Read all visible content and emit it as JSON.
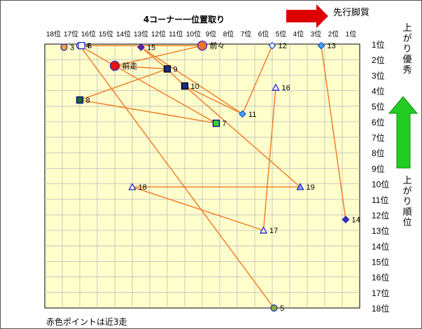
{
  "chart_data": {
    "type": "scatter",
    "title": "4コーナー一位置取り",
    "x_axis": {
      "ticks": [
        "18位",
        "17位",
        "16位",
        "15位",
        "14位",
        "13位",
        "12位",
        "11位",
        "10位",
        "9位",
        "8位",
        "7位",
        "6位",
        "5位",
        "4位",
        "3位",
        "2位",
        "1位"
      ],
      "direction_label": "先行脚質"
    },
    "y_axis": {
      "ticks": [
        "1位",
        "2位",
        "3位",
        "4位",
        "5位",
        "6位",
        "7位",
        "8位",
        "9位",
        "10位",
        "11位",
        "12位",
        "13位",
        "14位",
        "15位",
        "16位",
        "17位",
        "18位"
      ],
      "top_label": "上がり優秀",
      "side_label": "上がり順位"
    },
    "note": "赤色ポイントは近3走",
    "points": [
      {
        "label": "3",
        "x": 16.9,
        "y": 1.2,
        "shape": "circle",
        "fill": "#f2a33a",
        "stroke": "#3333aa"
      },
      {
        "label": "4",
        "x": 16.0,
        "y": 1.1,
        "shape": "circle",
        "fill": "#ffffff",
        "stroke": "#2222cc"
      },
      {
        "label": "6",
        "x": 15.9,
        "y": 1.1,
        "shape": "square",
        "fill": "#ffffff",
        "stroke": "#2222cc"
      },
      {
        "label": "15",
        "x": 12.5,
        "y": 1.2,
        "shape": "diamond",
        "fill": "#6a1ea0",
        "stroke": "#2222aa"
      },
      {
        "label": "前々",
        "x": 9.0,
        "y": 1.1,
        "shape": "circle",
        "fill": "#f07030",
        "stroke": "#3333aa"
      },
      {
        "label": "12",
        "x": 5.0,
        "y": 1.1,
        "shape": "diamond",
        "fill": "#ffffff",
        "stroke": "#2255cc"
      },
      {
        "label": "13",
        "x": 2.2,
        "y": 1.1,
        "shape": "diamond",
        "fill": "#3fa9f5",
        "stroke": "#2255cc"
      },
      {
        "label": "前走",
        "x": 14.0,
        "y": 2.4,
        "shape": "circle",
        "fill": "#ee1111",
        "stroke": "#3333aa"
      },
      {
        "label": "9",
        "x": 11.0,
        "y": 2.6,
        "shape": "square",
        "fill": "#1a2a8a",
        "stroke": "#000000"
      },
      {
        "label": "10",
        "x": 10.0,
        "y": 3.7,
        "shape": "square",
        "fill": "#1a2a8a",
        "stroke": "#000000"
      },
      {
        "label": "16",
        "x": 4.8,
        "y": 3.8,
        "shape": "triangle",
        "fill": "#ffffff",
        "stroke": "#2222cc"
      },
      {
        "label": "8",
        "x": 16.0,
        "y": 4.6,
        "shape": "square",
        "fill": "#1a6a2a",
        "stroke": "#000080"
      },
      {
        "label": "11",
        "x": 6.7,
        "y": 5.5,
        "shape": "diamond",
        "fill": "#3fa9f5",
        "stroke": "#2255cc"
      },
      {
        "label": "7",
        "x": 8.2,
        "y": 6.1,
        "shape": "square",
        "fill": "#3ad03a",
        "stroke": "#000080"
      },
      {
        "label": "18",
        "x": 13.0,
        "y": 10.2,
        "shape": "triangle",
        "fill": "#ffffff",
        "stroke": "#2222cc"
      },
      {
        "label": "19",
        "x": 3.4,
        "y": 10.2,
        "shape": "triangle",
        "fill": "#88aaff",
        "stroke": "#2222cc"
      },
      {
        "label": "14",
        "x": 0.8,
        "y": 12.3,
        "shape": "diamond",
        "fill": "#3333bb",
        "stroke": "#2222aa"
      },
      {
        "label": "17",
        "x": 5.5,
        "y": 13.0,
        "shape": "triangle",
        "fill": "#ffffff",
        "stroke": "#2222cc"
      },
      {
        "label": "5",
        "x": 4.9,
        "y": 18.0,
        "shape": "circle",
        "fill": "#88aa44",
        "stroke": "#3333aa"
      }
    ],
    "connections": [
      [
        "4",
        "前々"
      ],
      [
        "4",
        "前走"
      ],
      [
        "4",
        "5"
      ],
      [
        "前々",
        "前走"
      ],
      [
        "前走",
        "7"
      ],
      [
        "前走",
        "9"
      ],
      [
        "15",
        "9"
      ],
      [
        "15",
        "11"
      ],
      [
        "9",
        "8"
      ],
      [
        "9",
        "10"
      ],
      [
        "10",
        "19"
      ],
      [
        "10",
        "11"
      ],
      [
        "8",
        "7"
      ],
      [
        "16",
        "17"
      ],
      [
        "17",
        "18"
      ],
      [
        "18",
        "19"
      ],
      [
        "12",
        "11"
      ],
      [
        "13",
        "14"
      ]
    ],
    "colors": {
      "plot_bg": "#ffffcc",
      "grid": "#bbbbbb",
      "line": "#f07820",
      "arrow_red": "#dd0000",
      "arrow_green": "#22cc22"
    }
  }
}
